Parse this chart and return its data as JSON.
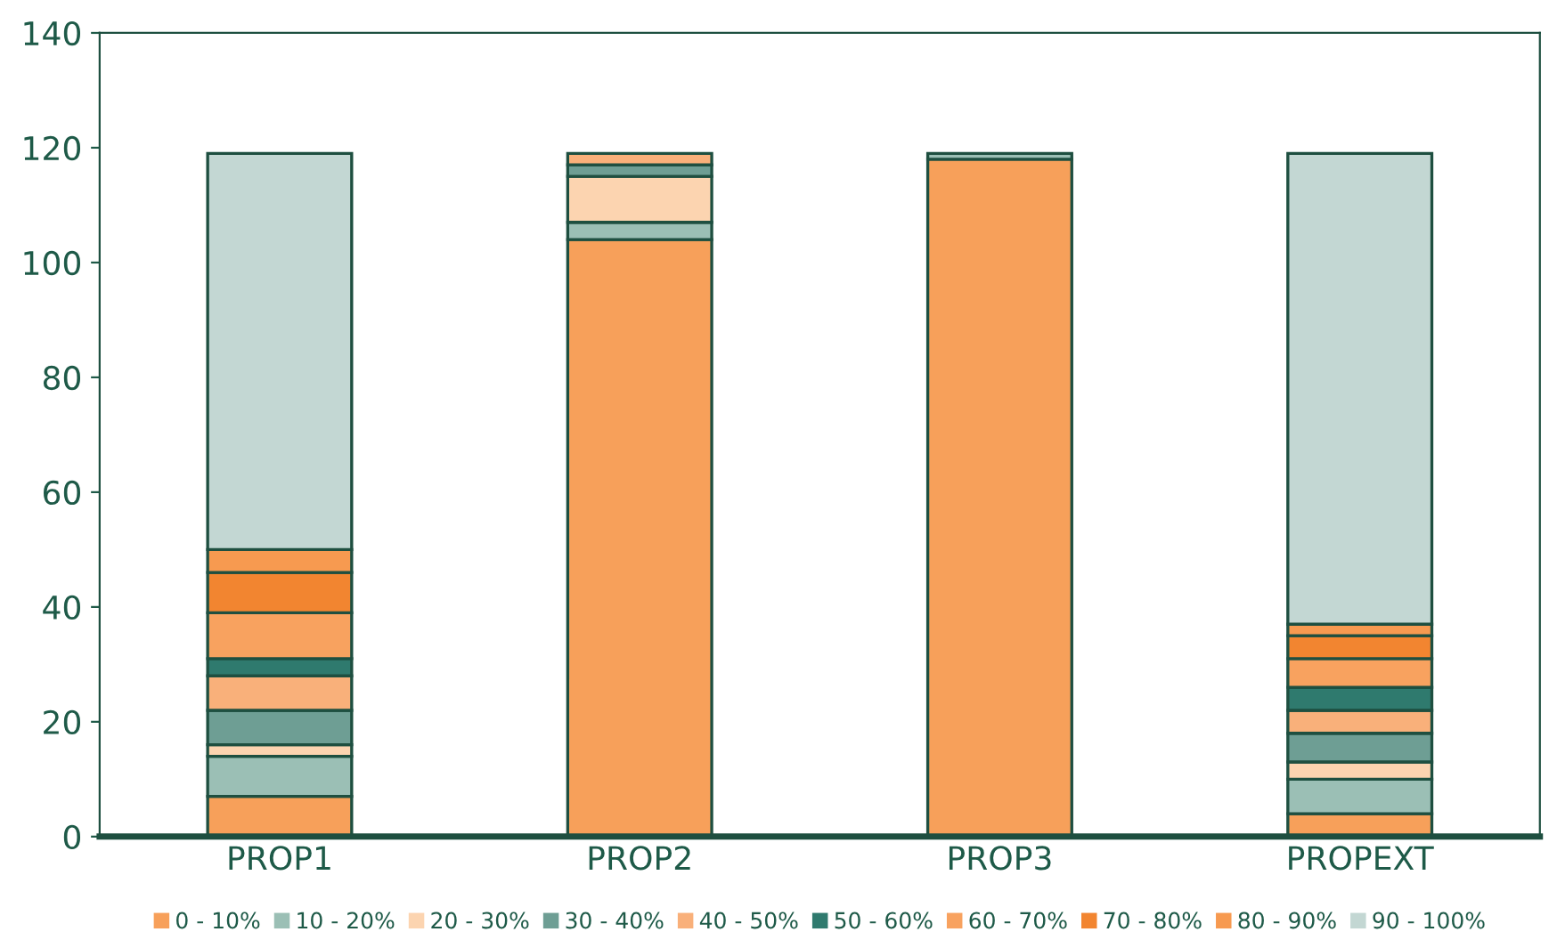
{
  "chart_data": {
    "type": "bar",
    "stacked": true,
    "categories": [
      "PROP1",
      "PROP2",
      "PROP3",
      "PROPEXT"
    ],
    "series": [
      {
        "name": "0 - 10%",
        "color": "#f7a05a",
        "values": [
          7,
          104,
          118,
          4
        ]
      },
      {
        "name": "10 - 20%",
        "color": "#9bbfb5",
        "values": [
          7,
          3,
          1,
          6
        ]
      },
      {
        "name": "20 - 30%",
        "color": "#fcd4b0",
        "values": [
          2,
          8,
          0,
          3
        ]
      },
      {
        "name": "30 - 40%",
        "color": "#6e9e94",
        "values": [
          6,
          2,
          0,
          5
        ]
      },
      {
        "name": "40 - 50%",
        "color": "#f9b07a",
        "values": [
          6,
          2,
          0,
          4
        ]
      },
      {
        "name": "50 - 60%",
        "color": "#2f7a6e",
        "values": [
          3,
          0,
          0,
          4
        ]
      },
      {
        "name": "60 - 70%",
        "color": "#f8a25f",
        "values": [
          8,
          0,
          0,
          5
        ]
      },
      {
        "name": "70 - 80%",
        "color": "#f28530",
        "values": [
          7,
          0,
          0,
          4
        ]
      },
      {
        "name": "80 - 90%",
        "color": "#f79a50",
        "values": [
          4,
          0,
          0,
          2
        ]
      },
      {
        "name": "90 - 100%",
        "color": "#c3d7d3",
        "values": [
          69,
          0,
          0,
          82
        ]
      }
    ],
    "ylim": [
      0,
      140
    ],
    "yticks": [
      0,
      20,
      40,
      60,
      80,
      100,
      120,
      140
    ],
    "grid": false,
    "legend": "bottom"
  }
}
